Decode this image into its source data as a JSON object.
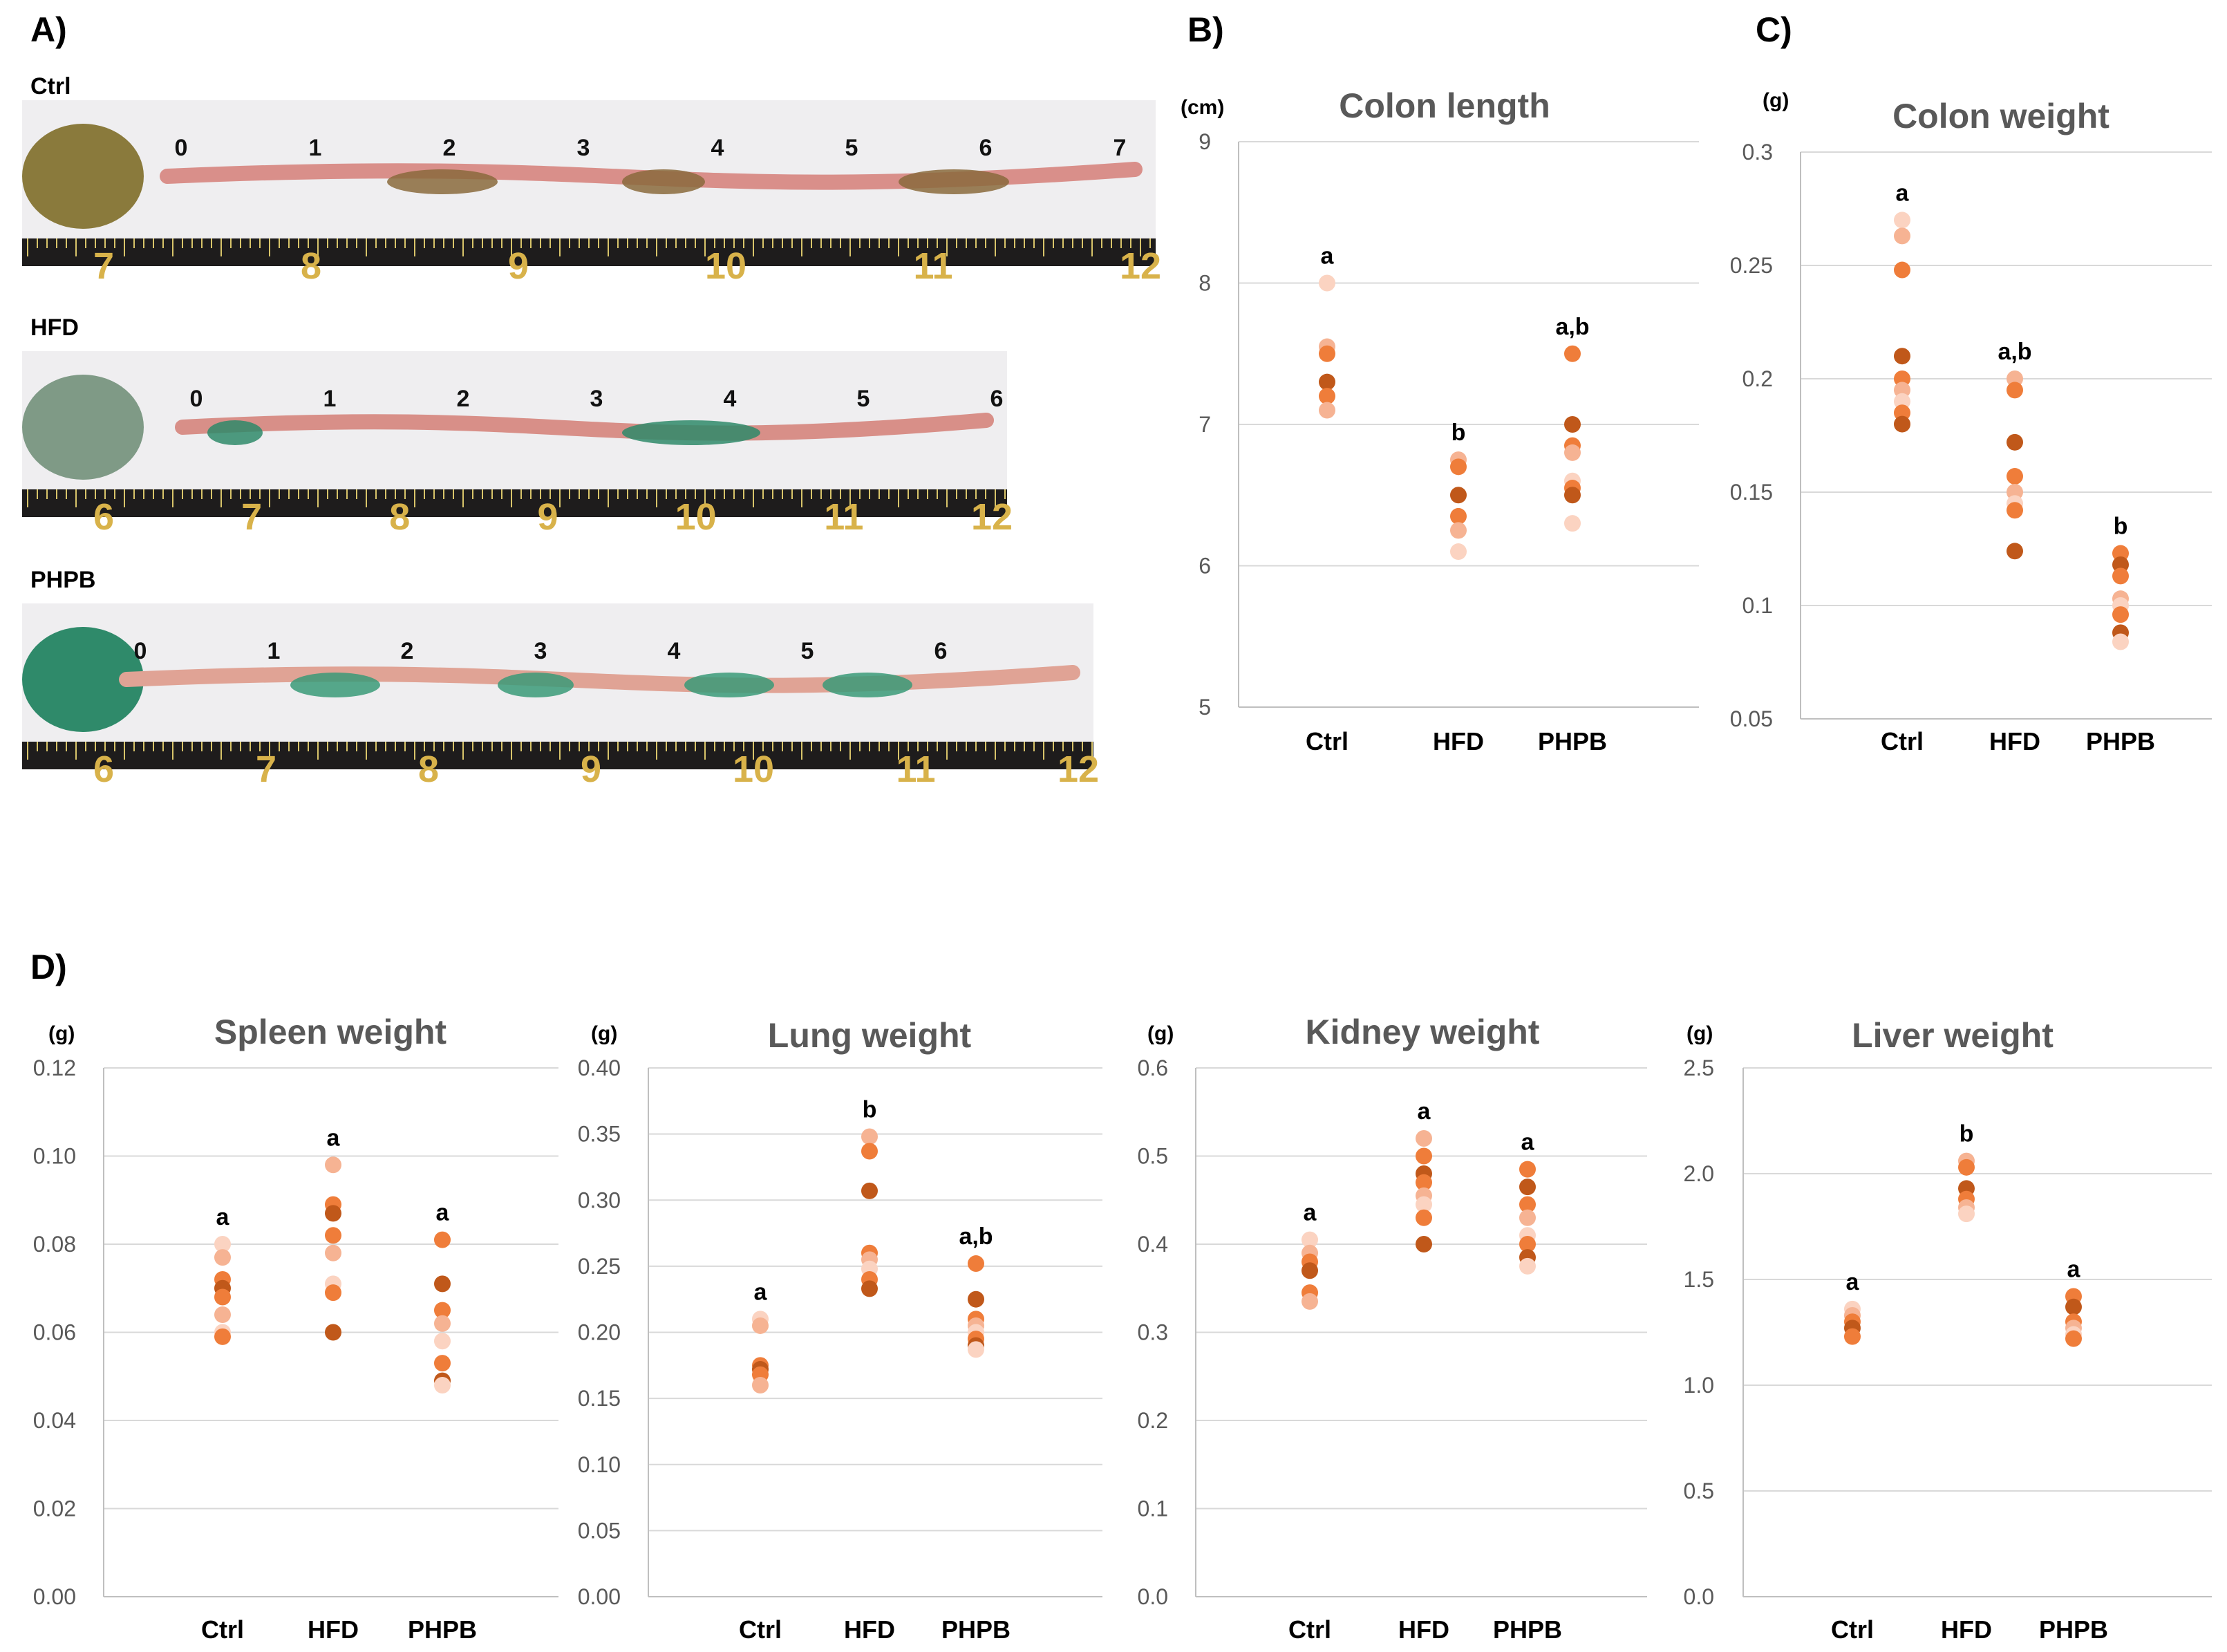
{
  "panel_labels": [
    "A)",
    "B)",
    "C)",
    "D)"
  ],
  "photos": [
    {
      "group": "Ctrl",
      "segments": [
        "0",
        "1",
        "2",
        "3",
        "4",
        "5",
        "6",
        "7"
      ],
      "ruler": [
        "7",
        "8",
        "9",
        "10",
        "11",
        "12"
      ],
      "tissue_color": "#d98f8a",
      "content_color": "#8a6a3c"
    },
    {
      "group": "HFD",
      "segments": [
        "0",
        "1",
        "2",
        "3",
        "4",
        "5",
        "6"
      ],
      "ruler": [
        "6",
        "7",
        "8",
        "9",
        "10",
        "11",
        "12"
      ],
      "tissue_color": "#d88f88",
      "content_color": "#2f8a6a"
    },
    {
      "group": "PHPB",
      "segments": [
        "0",
        "1",
        "2",
        "3",
        "4",
        "5",
        "6"
      ],
      "ruler": [
        "6",
        "7",
        "8",
        "9",
        "10",
        "11",
        "12"
      ],
      "tissue_color": "#e0a395",
      "content_color": "#3a9a78"
    }
  ],
  "colors": {
    "dark": "#c0581a",
    "mid": "#ef7d3a",
    "light": "#f6b393",
    "pale": "#fbd3c1"
  },
  "chart_data": [
    {
      "id": "colon-length",
      "type": "scatter",
      "title": "Colon length",
      "unit": "(cm)",
      "ylim": [
        5,
        9
      ],
      "yticks": [
        "5",
        "6",
        "7",
        "8",
        "9"
      ],
      "categories": [
        "Ctrl",
        "HFD",
        "PHPB"
      ],
      "significance": [
        "a",
        "b",
        "a,b"
      ],
      "points": [
        [
          8.0,
          7.55,
          7.5,
          7.3,
          7.2,
          7.1
        ],
        [
          6.75,
          6.7,
          6.5,
          6.35,
          6.25,
          6.1
        ],
        [
          7.5,
          7.0,
          6.85,
          6.8,
          6.6,
          6.55,
          6.5,
          6.3
        ]
      ]
    },
    {
      "id": "colon-weight",
      "type": "scatter",
      "title": "Colon weight",
      "unit": "(g)",
      "ylim": [
        0.05,
        0.3
      ],
      "yticks": [
        "0.05",
        "0.1",
        "0.15",
        "0.2",
        "0.25",
        "0.3"
      ],
      "categories": [
        "Ctrl",
        "HFD",
        "PHPB"
      ],
      "significance": [
        "a",
        "a,b",
        "b"
      ],
      "points": [
        [
          0.27,
          0.263,
          0.248,
          0.21,
          0.2,
          0.195,
          0.19,
          0.185,
          0.18
        ],
        [
          0.2,
          0.195,
          0.172,
          0.157,
          0.15,
          0.145,
          0.142,
          0.124
        ],
        [
          0.123,
          0.118,
          0.113,
          0.103,
          0.1,
          0.096,
          0.088,
          0.084
        ]
      ]
    },
    {
      "id": "spleen-weight",
      "type": "scatter",
      "title": "Spleen weight",
      "unit": "(g)",
      "ylim": [
        0,
        0.12
      ],
      "yticks": [
        "0.00",
        "0.02",
        "0.04",
        "0.06",
        "0.08",
        "0.10",
        "0.12"
      ],
      "categories": [
        "Ctrl",
        "HFD",
        "PHPB"
      ],
      "significance": [
        "a",
        "a",
        "a"
      ],
      "points": [
        [
          0.08,
          0.077,
          0.072,
          0.07,
          0.068,
          0.064,
          0.06,
          0.059
        ],
        [
          0.098,
          0.089,
          0.087,
          0.082,
          0.078,
          0.071,
          0.069,
          0.06
        ],
        [
          0.081,
          0.071,
          0.065,
          0.062,
          0.058,
          0.053,
          0.049,
          0.048
        ]
      ]
    },
    {
      "id": "lung-weight",
      "type": "scatter",
      "title": "Lung weight",
      "unit": "(g)",
      "ylim": [
        0,
        0.4
      ],
      "yticks": [
        "0.00",
        "0.05",
        "0.10",
        "0.15",
        "0.20",
        "0.25",
        "0.30",
        "0.35",
        "0.40"
      ],
      "categories": [
        "Ctrl",
        "HFD",
        "PHPB"
      ],
      "significance": [
        "a",
        "b",
        "a,b"
      ],
      "points": [
        [
          0.21,
          0.205,
          0.175,
          0.172,
          0.168,
          0.16
        ],
        [
          0.348,
          0.337,
          0.307,
          0.26,
          0.255,
          0.248,
          0.24,
          0.233
        ],
        [
          0.252,
          0.225,
          0.21,
          0.205,
          0.2,
          0.195,
          0.19,
          0.187
        ]
      ]
    },
    {
      "id": "kidney-weight",
      "type": "scatter",
      "title": "Kidney  weight",
      "unit": "(g)",
      "ylim": [
        0,
        0.6
      ],
      "yticks": [
        "0.0",
        "0.1",
        "0.2",
        "0.3",
        "0.4",
        "0.5",
        "0.6"
      ],
      "categories": [
        "Ctrl",
        "HFD",
        "PHPB"
      ],
      "significance": [
        "a",
        "a",
        "a"
      ],
      "points": [
        [
          0.405,
          0.39,
          0.38,
          0.37,
          0.345,
          0.335
        ],
        [
          0.52,
          0.5,
          0.48,
          0.47,
          0.455,
          0.445,
          0.43,
          0.4
        ],
        [
          0.485,
          0.465,
          0.445,
          0.43,
          0.41,
          0.4,
          0.385,
          0.375
        ]
      ]
    },
    {
      "id": "liver-weight",
      "type": "scatter",
      "title": "Liver weight",
      "unit": "(g)",
      "ylim": [
        0,
        2.5
      ],
      "yticks": [
        "0.0",
        "0.5",
        "1.0",
        "1.5",
        "2.0",
        "2.5"
      ],
      "categories": [
        "Ctrl",
        "HFD",
        "PHPB"
      ],
      "significance": [
        "a",
        "b",
        "a"
      ],
      "points": [
        [
          1.36,
          1.33,
          1.3,
          1.27,
          1.23
        ],
        [
          2.06,
          2.03,
          1.93,
          1.88,
          1.84,
          1.81
        ],
        [
          1.42,
          1.37,
          1.3,
          1.27,
          1.24,
          1.22
        ]
      ]
    }
  ]
}
